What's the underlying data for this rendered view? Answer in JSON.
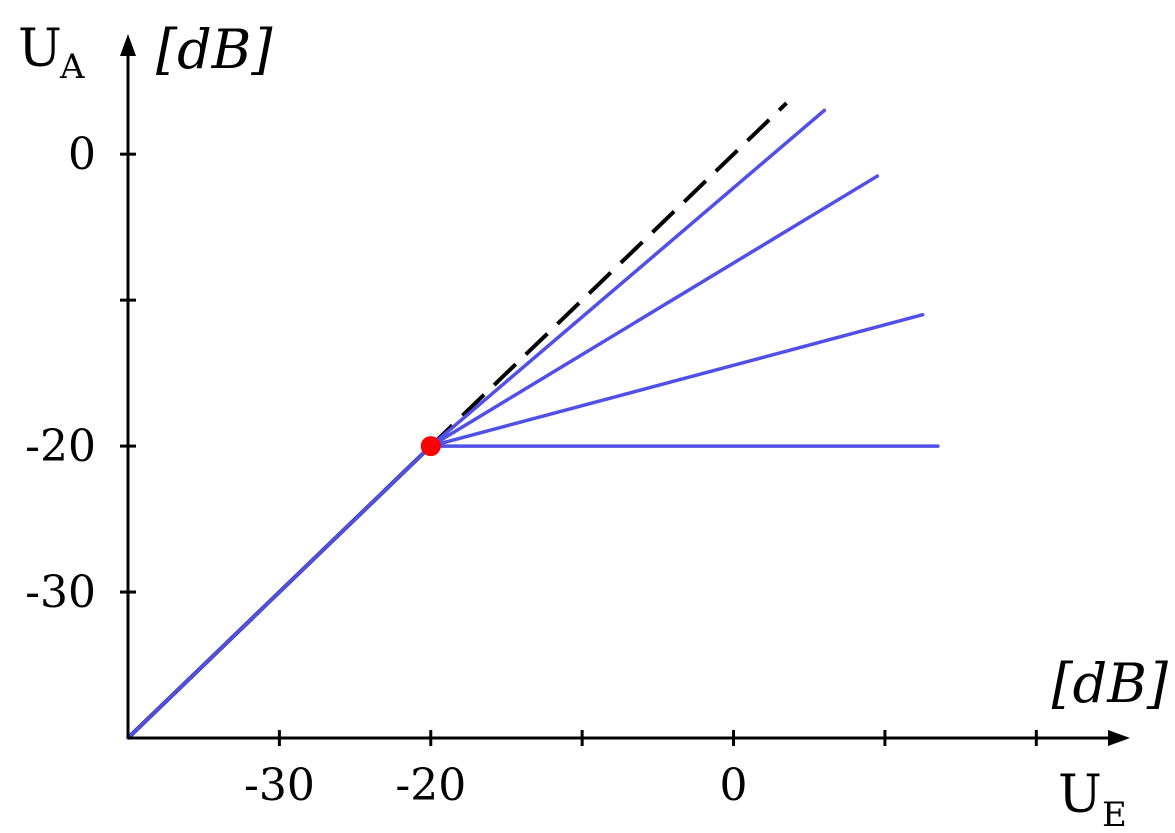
{
  "chart_data": {
    "type": "line",
    "x_axis": {
      "symbol": "U",
      "subscript": "E",
      "unit": "[dB]",
      "range": [
        -40,
        25
      ],
      "ticks": [
        -30,
        -20,
        -10,
        0,
        10,
        20
      ],
      "tick_labels": [
        "-30",
        "-20",
        "",
        "0",
        "",
        ""
      ]
    },
    "y_axis": {
      "symbol": "U",
      "subscript": "A",
      "unit": "[dB]",
      "range": [
        -40,
        7
      ],
      "ticks": [
        -30,
        -20,
        -10,
        0
      ],
      "tick_labels": [
        "-30",
        "-20",
        "",
        "0"
      ]
    },
    "threshold_point": {
      "x": -20,
      "y": -20,
      "color": "#ff0000"
    },
    "reference_line": {
      "style": "solid-then-dashed",
      "color": "#000000",
      "points": [
        [
          -40,
          -40
        ],
        [
          -20,
          -20
        ],
        [
          3.5,
          3.5
        ]
      ]
    },
    "series": [
      {
        "values": [
          [
            -40,
            -40
          ],
          [
            -20,
            -20
          ],
          [
            6,
            3
          ]
        ],
        "color": "#5050e8"
      },
      {
        "values": [
          [
            -20,
            -20
          ],
          [
            9.5,
            -1.5
          ]
        ],
        "color": "#5050e8"
      },
      {
        "values": [
          [
            -20,
            -20
          ],
          [
            12.5,
            -11
          ]
        ],
        "color": "#5050e8"
      },
      {
        "values": [
          [
            -20,
            -20
          ],
          [
            13.5,
            -20
          ]
        ],
        "color": "#5050e8"
      }
    ]
  }
}
